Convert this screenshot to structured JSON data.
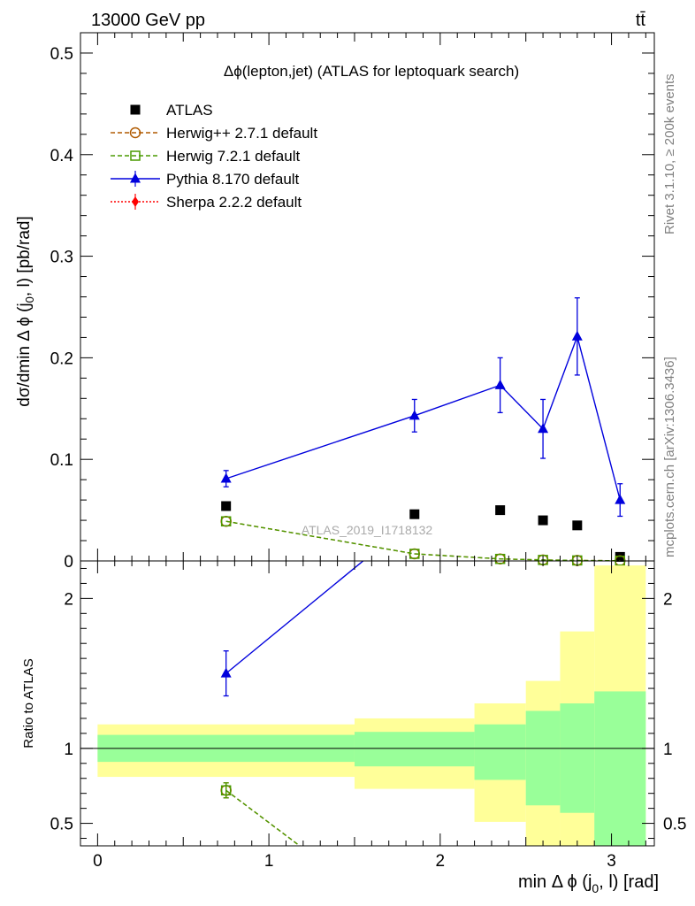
{
  "header": {
    "left": "13000 GeV pp",
    "right": "tt̄"
  },
  "side_labels": {
    "rivet": "Rivet 3.1.10, ≥ 200k events",
    "mcplots": "mcplots.cern.ch [arXiv:1306.3436]"
  },
  "colors": {
    "atlas": "#000000",
    "herwigpp": "#b05a00",
    "herwig7": "#4a9a00",
    "pythia": "#0000dd",
    "sherpa": "#ff0000",
    "band_inner": "#99ff99",
    "band_outer": "#ffff99"
  },
  "chart_data": [
    {
      "type": "scatter",
      "panel": "main",
      "title": "Δϕ(lepton,jet) (ATLAS for leptoquark search)",
      "watermark": "ATLAS_2019_I1718132",
      "ylabel": "dσ/dmin Δ ϕ (j0, l) [pb/rad]",
      "xlim": [
        -0.1,
        3.25
      ],
      "ylim": [
        0,
        0.52
      ],
      "yticks": [
        0,
        0.1,
        0.2,
        0.3,
        0.4,
        0.5
      ],
      "ytick_labels": [
        "0",
        "0.1",
        "0.2",
        "0.3",
        "0.4",
        "0.5"
      ],
      "legend_position": "top-left",
      "series": [
        {
          "name": "ATLAS",
          "key": "atlas",
          "marker": "square",
          "x": [
            0.75,
            1.85,
            2.35,
            2.6,
            2.8,
            3.05
          ],
          "y": [
            0.054,
            0.046,
            0.05,
            0.04,
            0.035,
            0.004
          ]
        },
        {
          "name": "Herwig++ 2.7.1 default",
          "key": "herwigpp",
          "marker": "open-circle",
          "line": "dashed",
          "x": [
            0.75,
            1.85,
            2.35,
            2.6,
            2.8,
            3.05
          ],
          "y": [
            0.039,
            0.007,
            0.002,
            0.001,
            0.0005,
            0.0002
          ]
        },
        {
          "name": "Herwig 7.2.1 default",
          "key": "herwig7",
          "marker": "open-square",
          "line": "dashed",
          "x": [
            0.75,
            1.85,
            2.35,
            2.6,
            2.8,
            3.05
          ],
          "y": [
            0.039,
            0.007,
            0.002,
            0.001,
            0.0005,
            0.0002
          ]
        },
        {
          "name": "Pythia 8.170 default",
          "key": "pythia",
          "marker": "triangle",
          "line": "solid",
          "x": [
            0.75,
            1.85,
            2.35,
            2.6,
            2.8,
            3.05
          ],
          "y": [
            0.081,
            0.143,
            0.173,
            0.13,
            0.221,
            0.06
          ],
          "yerr": [
            0.008,
            0.016,
            0.027,
            0.029,
            0.038,
            0.016
          ]
        },
        {
          "name": "Sherpa 2.2.2 default",
          "key": "sherpa",
          "marker": "diamond",
          "line": "dotted",
          "x": [],
          "y": []
        }
      ]
    },
    {
      "type": "line",
      "panel": "ratio",
      "ylabel": "Ratio to ATLAS",
      "xlabel": "min Δ ϕ (j0, l) [rad]",
      "xlim": [
        -0.1,
        3.25
      ],
      "ylim": [
        0.35,
        2.25
      ],
      "yticks": [
        0.5,
        1,
        2
      ],
      "ytick_labels": [
        "0.5",
        "1",
        "2"
      ],
      "xticks": [
        0,
        1,
        2,
        3
      ],
      "xtick_labels": [
        "0",
        "1",
        "2",
        "3"
      ],
      "bins": [
        {
          "lo": 0.0,
          "hi": 1.5,
          "inner": [
            0.91,
            1.09
          ],
          "outer": [
            0.81,
            1.16
          ]
        },
        {
          "lo": 1.5,
          "hi": 2.2,
          "inner": [
            0.88,
            1.11
          ],
          "outer": [
            0.73,
            1.2
          ]
        },
        {
          "lo": 2.2,
          "hi": 2.5,
          "inner": [
            0.79,
            1.16
          ],
          "outer": [
            0.51,
            1.3
          ]
        },
        {
          "lo": 2.5,
          "hi": 2.7,
          "inner": [
            0.62,
            1.25
          ],
          "outer": [
            0.33,
            1.45
          ]
        },
        {
          "lo": 2.7,
          "hi": 2.9,
          "inner": [
            0.57,
            1.3
          ],
          "outer": [
            0.33,
            1.78
          ]
        },
        {
          "lo": 2.9,
          "hi": 3.2,
          "inner": [
            0.33,
            1.38
          ],
          "outer": [
            0.33,
            2.22
          ]
        }
      ],
      "series": [
        {
          "name": "Pythia 8.170 default",
          "key": "pythia",
          "marker": "triangle",
          "x": [
            0.75
          ],
          "y": [
            1.5
          ],
          "yerr": [
            0.15
          ],
          "line_to": {
            "x": 1.55,
            "y": 2.25
          }
        },
        {
          "name": "Herwig++ 2.7.1 default",
          "key": "herwigpp",
          "marker": "open-circle",
          "x": [
            0.75
          ],
          "y": [
            0.72
          ],
          "yerr": [
            0.05
          ],
          "line_to": {
            "x": 1.18,
            "y": 0.35
          }
        },
        {
          "name": "Herwig 7.2.1 default",
          "key": "herwig7",
          "marker": "open-square",
          "x": [
            0.75
          ],
          "y": [
            0.72
          ],
          "yerr": [
            0.05
          ],
          "line_to": {
            "x": 1.18,
            "y": 0.35
          }
        }
      ]
    }
  ]
}
